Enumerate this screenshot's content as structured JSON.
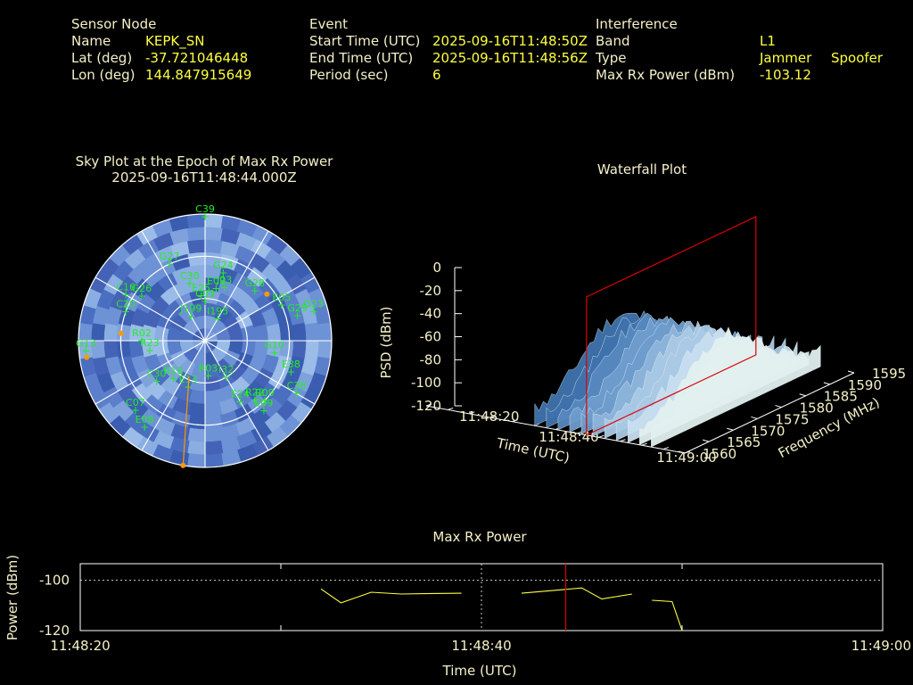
{
  "header": {
    "sensor_title": "Sensor Node",
    "name_label": "Name",
    "name_value": "KEPK_SN",
    "lat_label": "Lat (deg)",
    "lat_value": "-37.721046448",
    "lon_label": "Lon (deg)",
    "lon_value": "144.847915649",
    "event_title": "Event",
    "start_label": "Start Time (UTC)",
    "start_value": "2025-09-16T11:48:50Z",
    "end_label": "End Time (UTC)",
    "end_value": "2025-09-16T11:48:56Z",
    "period_label": "Period (sec)",
    "period_value": "6",
    "interf_title": "Interference",
    "band_label": "Band",
    "band_value": "L1",
    "type_label": "Type",
    "type_value1": "Jammer",
    "type_value2": "Spoofer",
    "maxrx_label": "Max Rx Power (dBm)",
    "maxrx_value": "-103.12"
  },
  "colors": {
    "label": "#f5f0c8",
    "value": "#ffff40",
    "sat": "#22ee22",
    "marker": "#ff9900",
    "line": "#ffff40",
    "cursor": "#dd0000"
  },
  "chart_data": [
    {
      "type": "scatter",
      "title": "Sky Plot at the Epoch of Max Rx Power",
      "subtitle": "2025-09-16T11:48:44.000Z",
      "satellites": [
        {
          "id": "C39",
          "az": 0,
          "el": 2
        },
        {
          "id": "E02",
          "az": 12,
          "el": 52
        },
        {
          "id": "G24",
          "az": 15,
          "el": 40
        },
        {
          "id": "G27",
          "az": 335,
          "el": 30
        },
        {
          "id": "C30",
          "az": 345,
          "el": 48
        },
        {
          "id": "C09",
          "az": 0,
          "el": 62
        },
        {
          "id": "J03",
          "az": 20,
          "el": 50
        },
        {
          "id": "G26",
          "az": 305,
          "el": 35
        },
        {
          "id": "E25",
          "az": 355,
          "el": 58
        },
        {
          "id": "G28",
          "az": 45,
          "el": 40
        },
        {
          "id": "C20",
          "az": 290,
          "el": 30
        },
        {
          "id": "C16",
          "az": 300,
          "el": 25
        },
        {
          "id": "I195",
          "az": 30,
          "el": 72
        },
        {
          "id": "J199",
          "az": 330,
          "el": 70
        },
        {
          "id": "G23",
          "az": 75,
          "el": 10
        },
        {
          "id": "E05",
          "az": 65,
          "el": 30
        },
        {
          "id": "G29",
          "az": 75,
          "el": 22
        },
        {
          "id": "R02",
          "az": 270,
          "el": 45
        },
        {
          "id": "R23",
          "az": 260,
          "el": 50
        },
        {
          "id": "G10",
          "az": 100,
          "el": 40
        },
        {
          "id": "E38",
          "az": 110,
          "el": 25
        },
        {
          "id": "G13",
          "az": 265,
          "el": 5
        },
        {
          "id": "C30",
          "az": 230,
          "el": 45
        },
        {
          "id": "R18",
          "az": 220,
          "el": 55
        },
        {
          "id": "C38",
          "az": 120,
          "el": 15
        },
        {
          "id": "E13",
          "az": 200,
          "el": 55
        },
        {
          "id": "R03",
          "az": 175,
          "el": 65
        },
        {
          "id": "E24",
          "az": 150,
          "el": 40
        },
        {
          "id": "C07",
          "az": 225,
          "el": 20
        },
        {
          "id": "E08",
          "az": 215,
          "el": 15
        },
        {
          "id": "R09",
          "az": 135,
          "el": 30
        },
        {
          "id": "R22",
          "az": 140,
          "el": 35
        },
        {
          "id": "E09",
          "az": 140,
          "el": 25
        },
        {
          "id": "I32",
          "az": 150,
          "el": 60
        }
      ],
      "markers": [
        {
          "az": 53,
          "el": 35
        },
        {
          "az": 275,
          "el": 30
        },
        {
          "az": 262,
          "el": 5
        },
        {
          "az": 190,
          "el": 0
        }
      ]
    },
    {
      "type": "area",
      "title": "Waterfall Plot",
      "xlabel": "Time (UTC)",
      "ylabel": "Frequency (MHz)",
      "zlabel": "PSD (dBm)",
      "x_ticks": [
        "11:48:20",
        "11:48:40",
        "11:49:00"
      ],
      "y_ticks": [
        1560,
        1565,
        1570,
        1575,
        1580,
        1585,
        1590,
        1595
      ],
      "z_ticks": [
        0,
        -20,
        -40,
        -60,
        -80,
        -100,
        -120
      ],
      "zlim": [
        -120,
        0
      ]
    },
    {
      "type": "line",
      "title": "Max Rx Power",
      "xlabel": "Time (UTC)",
      "ylabel": "Power (dBm)",
      "x_ticks": [
        "11:48:20",
        "11:48:40",
        "11:49:00"
      ],
      "y_ticks": [
        -100,
        -120
      ],
      "xlim": [
        0,
        40
      ],
      "ylim": [
        -120,
        -93.5
      ],
      "series": [
        {
          "segments": [
            [
              [
                12,
                -103.5
              ],
              [
                13,
                -109
              ],
              [
                14.5,
                -104.8
              ],
              [
                16,
                -105.5
              ],
              [
                17.5,
                -105.3
              ],
              [
                19,
                -105.2
              ]
            ],
            [
              [
                22,
                -105.2
              ],
              [
                24,
                -103.8
              ],
              [
                25,
                -103.12
              ],
              [
                26,
                -107.5
              ],
              [
                27.5,
                -105.5
              ]
            ],
            [
              [
                28.5,
                -108
              ],
              [
                29.5,
                -108.5
              ],
              [
                30,
                -120
              ]
            ]
          ]
        }
      ],
      "cursor_x": 24.2
    }
  ]
}
